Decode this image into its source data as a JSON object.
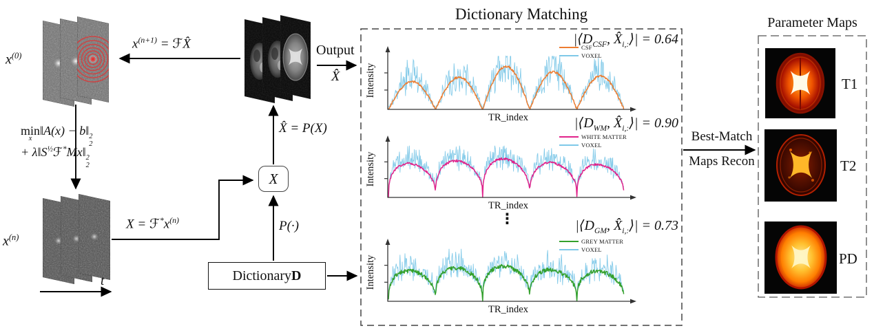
{
  "dm_title": "Dictionary Matching",
  "pm_title": "Parameter Maps",
  "labels": {
    "x0": {
      "base": "x",
      "sup": "(0)"
    },
    "xn": {
      "base": "x",
      "sup": "(n)"
    },
    "t": "t",
    "feedback": {
      "a": "x",
      "sup": "(n+1)",
      "b": " = ℱ",
      "xhat": "X̂"
    },
    "transform": {
      "a": "X = ℱ",
      "sup": "*",
      "b": "x",
      "sup2": "(n)"
    },
    "projection": {
      "xhat": "X̂",
      "rest": " = P(X)"
    },
    "proj_op": "P(·)",
    "output": {
      "label": "Output",
      "sub": "X̂"
    },
    "best_match": {
      "line1": "Best-Match",
      "line2": "Maps Recon"
    }
  },
  "eq": {
    "min": "min",
    "minsub": "x",
    "line1": "‖A(x) − b‖",
    "norm_sup": "2",
    "norm_sub": "2",
    "line2a": "+ λ‖S",
    "line2sup1": "½",
    "line2b": "ℱ",
    "line2sup2": "*",
    "line2c": "Mx‖"
  },
  "boxes": {
    "x": "X",
    "dict_a": "Dictionary ",
    "dict_b": "D"
  },
  "dm": {
    "ellipsis": "⋮",
    "plots": [
      {
        "corr": {
          "open": "|⟨D",
          "dsub": "CSF",
          "mid": ", X̂",
          "xsub": "i,:",
          "close": "⟩| = ",
          "value": "0.64"
        },
        "legend": [
          {
            "label": "CSF",
            "color": "#ED7D31"
          },
          {
            "label": "VOXEL",
            "color": "#7EC8E8"
          }
        ],
        "ylabel": "Intensity",
        "xlabel": "TR_index"
      },
      {
        "corr": {
          "open": "|⟨D",
          "dsub": "WM",
          "mid": ", X̂",
          "xsub": "i,:",
          "close": "⟩| = ",
          "value": "0.90"
        },
        "legend": [
          {
            "label": "WHITE MATTER",
            "color": "#E0218A"
          },
          {
            "label": "VOXEL",
            "color": "#7EC8E8"
          }
        ],
        "ylabel": "Intensity",
        "xlabel": "TR_index"
      },
      {
        "corr": {
          "open": "|⟨D",
          "dsub": "GM",
          "mid": ", X̂",
          "xsub": "i,:",
          "close": "⟩| = ",
          "value": "0.73"
        },
        "legend": [
          {
            "label": "GREY MATTER",
            "color": "#33A02C"
          },
          {
            "label": "VOXEL",
            "color": "#7EC8E8"
          }
        ],
        "ylabel": "Intensity",
        "xlabel": "TR_index"
      }
    ]
  },
  "pm": {
    "maps": [
      {
        "label": "T1"
      },
      {
        "label": "T2"
      },
      {
        "label": "PD"
      }
    ]
  }
}
